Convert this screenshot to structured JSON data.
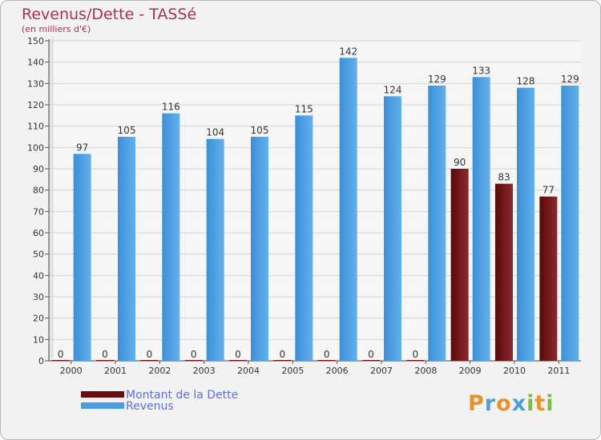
{
  "chart_data": {
    "type": "bar",
    "title": "Revenus/Dette - TASSé",
    "subtitle": "(en milliers d'€)",
    "categories": [
      "2000",
      "2001",
      "2002",
      "2003",
      "2004",
      "2005",
      "2006",
      "2007",
      "2008",
      "2009",
      "2010",
      "2011"
    ],
    "series": [
      {
        "name": "Montant de la Dette",
        "color": "#7a0f12",
        "values": [
          0,
          0,
          0,
          0,
          0,
          0,
          0,
          0,
          0,
          90,
          83,
          77
        ]
      },
      {
        "name": "Revenus",
        "color": "#4a9be0",
        "values": [
          97,
          105,
          116,
          104,
          105,
          115,
          142,
          124,
          129,
          133,
          128,
          129
        ]
      }
    ],
    "ylim": [
      0,
      150
    ],
    "yticks": [
      0,
      10,
      20,
      30,
      40,
      50,
      60,
      70,
      80,
      90,
      100,
      110,
      120,
      130,
      140,
      150
    ],
    "grid": true,
    "xlabel": "",
    "ylabel": ""
  },
  "logo": {
    "letters": [
      {
        "char": "P",
        "color": "#e8922a"
      },
      {
        "char": "r",
        "color": "#4aa0d8"
      },
      {
        "char": "o",
        "color": "#e8922a"
      },
      {
        "char": "x",
        "color": "#4aa0d8"
      },
      {
        "char": "i",
        "color": "#7cbf3c"
      },
      {
        "char": "t",
        "color": "#e8922a"
      },
      {
        "char": "i",
        "color": "#7cbf3c"
      }
    ]
  }
}
